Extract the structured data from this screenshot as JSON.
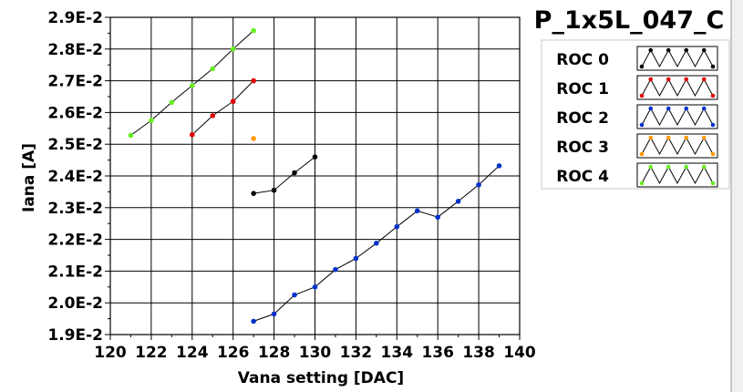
{
  "chart_data": {
    "type": "scatter",
    "title": "P_1x5L_047_C",
    "xlabel": "Vana setting [DAC]",
    "ylabel": "Iana [A]",
    "xlim": [
      120,
      140
    ],
    "ylim": [
      0.019,
      0.029
    ],
    "grid": true,
    "legend_position": "right",
    "x_ticks": [
      "120",
      "122",
      "124",
      "126",
      "128",
      "130",
      "132",
      "134",
      "136",
      "138",
      "140"
    ],
    "y_ticks": [
      "1.9E-2",
      "2.0E-2",
      "2.1E-2",
      "2.2E-2",
      "2.3E-2",
      "2.4E-2",
      "2.5E-2",
      "2.6E-2",
      "2.7E-2",
      "2.8E-2",
      "2.9E-2"
    ],
    "series": [
      {
        "name": "ROC 0",
        "color": "#000000",
        "points": [
          [
            127,
            0.02345
          ],
          [
            128,
            0.02355
          ],
          [
            129,
            0.0241
          ],
          [
            130,
            0.0246
          ]
        ]
      },
      {
        "name": "ROC 1",
        "color": "#e00000",
        "points": [
          [
            124,
            0.0253
          ],
          [
            125,
            0.0259
          ],
          [
            126,
            0.02635
          ],
          [
            127,
            0.027
          ]
        ]
      },
      {
        "name": "ROC 2",
        "color": "#0033cc",
        "points": [
          [
            127,
            0.01942
          ],
          [
            128,
            0.01965
          ],
          [
            129,
            0.02025
          ],
          [
            130,
            0.0205
          ],
          [
            131,
            0.02105
          ],
          [
            132,
            0.0214
          ],
          [
            133,
            0.02188
          ],
          [
            134,
            0.0224
          ],
          [
            135,
            0.0229
          ],
          [
            136,
            0.0227
          ],
          [
            137,
            0.0232
          ],
          [
            138,
            0.02372
          ],
          [
            139,
            0.02432
          ]
        ]
      },
      {
        "name": "ROC 3",
        "color": "#ff9900",
        "points": [
          [
            127,
            0.02518
          ]
        ]
      },
      {
        "name": "ROC 4",
        "color": "#66ee22",
        "points": [
          [
            121,
            0.02528
          ],
          [
            122,
            0.02575
          ],
          [
            123,
            0.02632
          ],
          [
            124,
            0.02685
          ],
          [
            125,
            0.02738
          ],
          [
            126,
            0.028
          ],
          [
            127,
            0.02858
          ]
        ]
      }
    ]
  }
}
